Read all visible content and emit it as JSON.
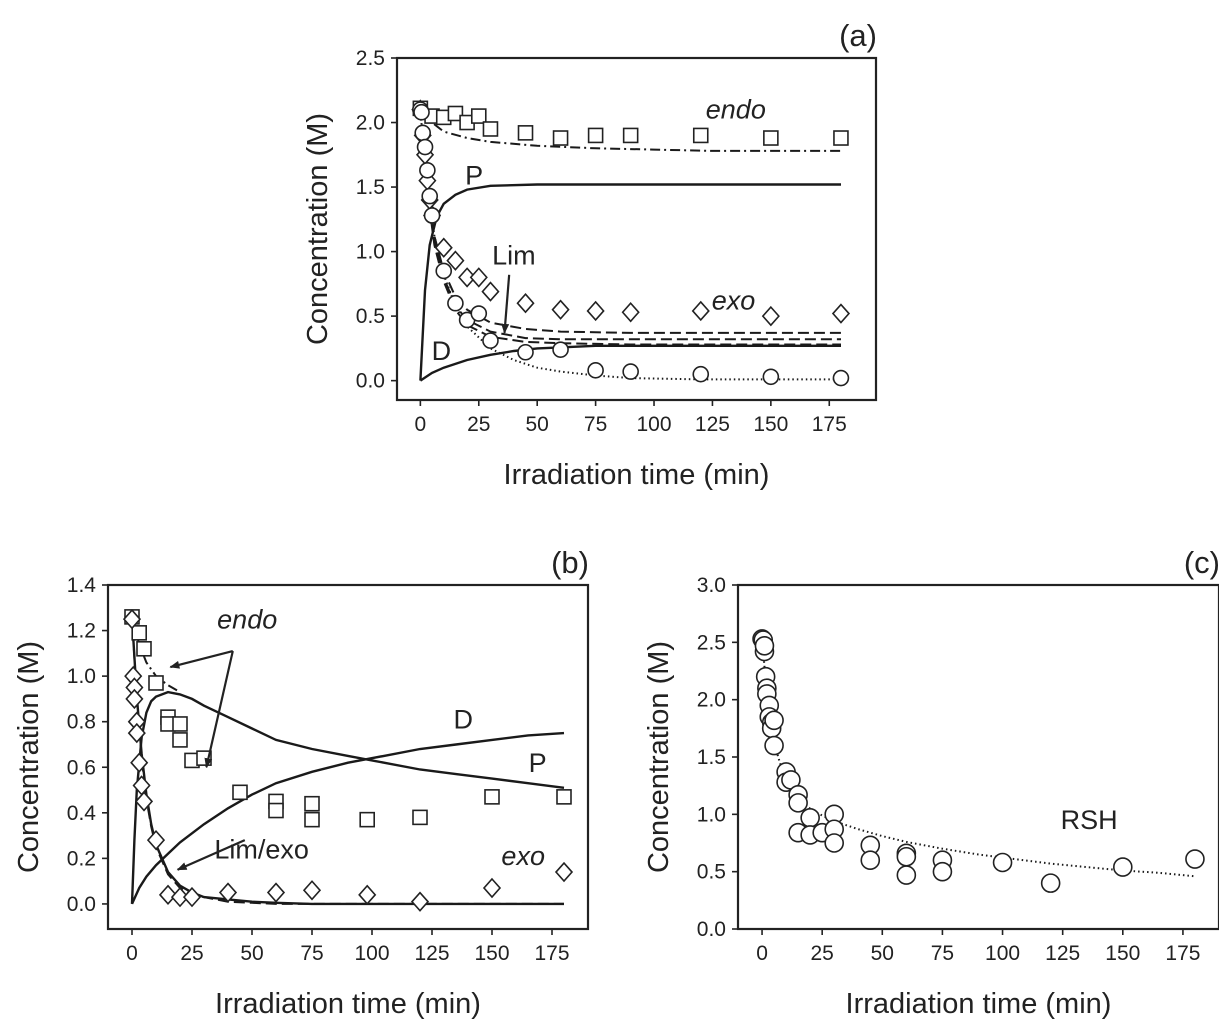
{
  "chart_data": [
    {
      "panel": "(a)",
      "type": "scatter",
      "xlabel": "Irradiation time (min)",
      "ylabel": "Concentration (M)",
      "xlim": [
        -10,
        195
      ],
      "ylim": [
        -0.15,
        2.5
      ],
      "xticks": [
        0,
        25,
        50,
        75,
        100,
        125,
        150,
        175
      ],
      "yticks": [
        0.0,
        0.5,
        1.0,
        1.5,
        2.0,
        2.5
      ],
      "ytick_labels": [
        "0.0",
        "0.5",
        "1.0",
        "1.5",
        "2.0",
        "2.5"
      ],
      "series": [
        {
          "marker": "square",
          "x": [
            0,
            5,
            10,
            15,
            20,
            25,
            30,
            45,
            60,
            75,
            90,
            120,
            150,
            180
          ],
          "y": [
            2.11,
            2.05,
            2.04,
            2.07,
            2.0,
            2.05,
            1.95,
            1.92,
            1.88,
            1.9,
            1.9,
            1.9,
            1.88,
            1.88
          ]
        },
        {
          "marker": "diamond",
          "x": [
            0,
            1,
            2,
            3,
            4,
            5,
            10,
            15,
            20,
            25,
            30,
            45,
            60,
            75,
            90,
            120,
            150,
            180
          ],
          "y": [
            2.1,
            1.9,
            1.75,
            1.55,
            1.4,
            1.28,
            1.03,
            0.93,
            0.8,
            0.8,
            0.69,
            0.6,
            0.55,
            0.54,
            0.53,
            0.54,
            0.5,
            0.52
          ]
        },
        {
          "marker": "circle",
          "x": [
            0,
            0.5,
            1,
            2,
            3,
            4,
            5,
            10,
            15,
            20,
            25,
            30,
            45,
            60,
            75,
            90,
            120,
            150,
            180
          ],
          "y": [
            2.1,
            2.08,
            1.92,
            1.81,
            1.63,
            1.43,
            1.28,
            0.85,
            0.6,
            0.47,
            0.52,
            0.31,
            0.22,
            0.24,
            0.08,
            0.07,
            0.05,
            0.03,
            0.02
          ]
        }
      ],
      "curves": [
        {
          "style": "dashdot",
          "x": [
            0,
            5,
            10,
            20,
            30,
            50,
            75,
            100,
            125,
            150,
            180
          ],
          "y": [
            2.1,
            2.0,
            1.93,
            1.88,
            1.85,
            1.82,
            1.8,
            1.79,
            1.78,
            1.78,
            1.78
          ]
        },
        {
          "style": "solid",
          "x": [
            0,
            2,
            4,
            7,
            10,
            15,
            20,
            30,
            50,
            75,
            100,
            180
          ],
          "y": [
            0,
            0.7,
            1.05,
            1.27,
            1.37,
            1.44,
            1.48,
            1.51,
            1.52,
            1.52,
            1.52,
            1.52
          ]
        },
        {
          "style": "solid",
          "x": [
            0,
            5,
            10,
            20,
            30,
            40,
            50,
            75,
            100,
            180
          ],
          "y": [
            0,
            0.06,
            0.1,
            0.16,
            0.2,
            0.23,
            0.25,
            0.27,
            0.27,
            0.27
          ]
        },
        {
          "style": "dashed",
          "x": [
            0,
            3,
            6,
            10,
            15,
            20,
            30,
            45,
            60,
            90,
            120,
            180
          ],
          "y": [
            2.1,
            1.5,
            1.12,
            0.85,
            0.65,
            0.55,
            0.45,
            0.4,
            0.38,
            0.37,
            0.37,
            0.37
          ]
        },
        {
          "style": "dashed",
          "x": [
            0,
            3,
            6,
            10,
            15,
            20,
            30,
            45,
            60,
            90,
            120,
            180
          ],
          "y": [
            2.1,
            1.48,
            1.08,
            0.8,
            0.58,
            0.47,
            0.38,
            0.33,
            0.32,
            0.32,
            0.32,
            0.32
          ]
        },
        {
          "style": "dashed",
          "x": [
            0,
            3,
            6,
            10,
            15,
            20,
            30,
            45,
            60,
            90,
            120,
            180
          ],
          "y": [
            2.1,
            1.46,
            1.05,
            0.77,
            0.55,
            0.43,
            0.34,
            0.3,
            0.29,
            0.28,
            0.28,
            0.28
          ]
        },
        {
          "style": "dotted",
          "x": [
            0,
            2,
            4,
            6,
            10,
            15,
            20,
            30,
            40,
            50,
            60,
            75,
            90,
            120,
            150,
            180
          ],
          "y": [
            2.1,
            1.65,
            1.35,
            1.12,
            0.82,
            0.58,
            0.42,
            0.25,
            0.16,
            0.1,
            0.07,
            0.04,
            0.02,
            0.01,
            0.01,
            0.01
          ]
        }
      ],
      "annotations": [
        {
          "text": "endo",
          "italic": true,
          "x": 135,
          "y": 2.03
        },
        {
          "text": "P",
          "italic": false,
          "x": 23,
          "y": 1.52
        },
        {
          "text": "Lim",
          "italic": false,
          "x": 40,
          "y": 0.9
        },
        {
          "text": "exo",
          "italic": true,
          "x": 134,
          "y": 0.55
        },
        {
          "text": "D",
          "italic": false,
          "x": 9,
          "y": 0.16
        }
      ],
      "arrows": [
        {
          "from": [
            38,
            0.82
          ],
          "to": [
            36,
            0.37
          ]
        }
      ]
    },
    {
      "panel": "(b)",
      "type": "scatter",
      "xlabel": "Irradiation time (min)",
      "ylabel": "Concentration (M)",
      "xlim": [
        -10,
        190
      ],
      "ylim": [
        -0.11,
        1.4
      ],
      "xticks": [
        0,
        25,
        50,
        75,
        100,
        125,
        150,
        175
      ],
      "yticks": [
        0.0,
        0.2,
        0.4,
        0.6,
        0.8,
        1.0,
        1.2,
        1.4
      ],
      "ytick_labels": [
        "0.0",
        "0.2",
        "0.4",
        "0.6",
        "0.8",
        "1.0",
        "1.2",
        "1.4"
      ],
      "series": [
        {
          "marker": "square",
          "x": [
            0,
            3,
            5,
            10,
            15,
            15,
            20,
            20,
            25,
            30,
            45,
            60,
            60,
            75,
            75,
            98,
            120,
            150,
            180
          ],
          "y": [
            1.26,
            1.19,
            1.12,
            0.97,
            0.82,
            0.79,
            0.79,
            0.72,
            0.63,
            0.64,
            0.49,
            0.45,
            0.41,
            0.44,
            0.37,
            0.37,
            0.38,
            0.47,
            0.47
          ]
        },
        {
          "marker": "diamond",
          "x": [
            0,
            0.5,
            1,
            1,
            2,
            2,
            3,
            4,
            5,
            10,
            15,
            20,
            25,
            40,
            60,
            75,
            98,
            120,
            150,
            180
          ],
          "y": [
            1.25,
            1.0,
            0.95,
            0.9,
            0.8,
            0.75,
            0.62,
            0.52,
            0.45,
            0.28,
            0.04,
            0.03,
            0.03,
            0.05,
            0.05,
            0.06,
            0.04,
            0.01,
            0.07,
            0.14
          ]
        }
      ],
      "curves": [
        {
          "style": "dashdot",
          "x": [
            0,
            3,
            6,
            10,
            15,
            20
          ],
          "y": [
            1.26,
            1.14,
            1.06,
            1.0,
            0.96,
            0.93
          ]
        },
        {
          "style": "solid",
          "x": [
            0,
            1,
            2,
            4,
            6,
            8,
            10,
            15,
            20,
            25,
            30,
            40,
            50,
            60,
            75,
            90,
            105,
            120,
            135,
            150,
            165,
            180
          ],
          "y": [
            0,
            0.28,
            0.5,
            0.73,
            0.84,
            0.89,
            0.91,
            0.93,
            0.92,
            0.9,
            0.87,
            0.82,
            0.77,
            0.72,
            0.68,
            0.65,
            0.62,
            0.59,
            0.57,
            0.55,
            0.53,
            0.51
          ]
        },
        {
          "style": "solid",
          "x": [
            0,
            3,
            6,
            10,
            15,
            20,
            30,
            40,
            50,
            60,
            75,
            90,
            105,
            120,
            135,
            150,
            165,
            180
          ],
          "y": [
            0,
            0.07,
            0.12,
            0.17,
            0.22,
            0.27,
            0.35,
            0.42,
            0.48,
            0.53,
            0.58,
            0.62,
            0.65,
            0.68,
            0.7,
            0.72,
            0.74,
            0.75
          ]
        },
        {
          "style": "dashed",
          "x": [
            0,
            2,
            4,
            6,
            8,
            10,
            15,
            20,
            25,
            30,
            40,
            50,
            60,
            75,
            100,
            140,
            180
          ],
          "y": [
            1.26,
            0.9,
            0.64,
            0.46,
            0.34,
            0.25,
            0.13,
            0.07,
            0.04,
            0.03,
            0.01,
            0.005,
            0.0,
            0.0,
            0.0,
            0.0,
            0.0
          ]
        },
        {
          "style": "solid",
          "x": [
            0,
            2,
            4,
            6,
            8,
            10,
            15,
            20,
            25,
            30,
            40,
            50,
            60,
            75,
            100,
            140,
            180
          ],
          "y": [
            1.26,
            0.91,
            0.66,
            0.48,
            0.35,
            0.26,
            0.14,
            0.08,
            0.05,
            0.03,
            0.02,
            0.01,
            0.005,
            0.0,
            0.0,
            0.0,
            0.0
          ]
        }
      ],
      "annotations": [
        {
          "text": "endo",
          "italic": true,
          "x": 48,
          "y": 1.21
        },
        {
          "text": "D",
          "italic": false,
          "x": 138,
          "y": 0.77
        },
        {
          "text": "P",
          "italic": false,
          "x": 169,
          "y": 0.58
        },
        {
          "text": "Lim/exo",
          "italic": false,
          "x": 54,
          "y": 0.2
        },
        {
          "text": "exo",
          "italic": true,
          "x": 163,
          "y": 0.17
        }
      ],
      "arrows": [
        {
          "from": [
            42,
            1.11
          ],
          "to": [
            16,
            1.04
          ]
        },
        {
          "from": [
            42,
            1.11
          ],
          "to": [
            31,
            0.6
          ]
        },
        {
          "from": [
            47,
            0.28
          ],
          "to": [
            19,
            0.15
          ]
        }
      ]
    },
    {
      "panel": "(c)",
      "type": "scatter",
      "xlabel": "Irradiation time (min)",
      "ylabel": "Concentration (M)",
      "xlim": [
        -10,
        190
      ],
      "ylim": [
        0,
        3
      ],
      "xticks": [
        0,
        25,
        50,
        75,
        100,
        125,
        150,
        175
      ],
      "yticks": [
        0.0,
        0.5,
        1.0,
        1.5,
        2.0,
        2.5,
        3.0
      ],
      "ytick_labels": [
        "0.0",
        "0.5",
        "1.0",
        "1.5",
        "2.0",
        "2.5",
        "3.0"
      ],
      "series": [
        {
          "marker": "circle",
          "x": [
            0,
            0.5,
            1,
            1,
            1.5,
            2,
            2,
            3,
            3,
            4,
            4,
            5,
            5,
            10,
            10,
            12,
            15,
            15,
            15,
            20,
            20,
            25,
            30,
            30,
            30,
            45,
            45,
            60,
            60,
            60,
            75,
            75,
            100,
            120,
            150,
            180
          ],
          "y": [
            2.53,
            2.52,
            2.42,
            2.47,
            2.2,
            2.1,
            2.05,
            1.95,
            1.85,
            1.8,
            1.75,
            1.6,
            1.82,
            1.37,
            1.28,
            1.3,
            1.17,
            1.1,
            0.84,
            0.97,
            0.82,
            0.84,
            1.0,
            0.87,
            0.75,
            0.73,
            0.6,
            0.66,
            0.63,
            0.47,
            0.6,
            0.5,
            0.58,
            0.4,
            0.54,
            0.61
          ]
        }
      ],
      "curves": [
        {
          "style": "dotted",
          "x": [
            0,
            2,
            4,
            6,
            8,
            10,
            15,
            20,
            25,
            30,
            40,
            50,
            60,
            75,
            90,
            105,
            120,
            135,
            150,
            165,
            180
          ],
          "y": [
            2.53,
            2.05,
            1.75,
            1.55,
            1.41,
            1.3,
            1.14,
            1.05,
            0.99,
            0.94,
            0.87,
            0.81,
            0.76,
            0.7,
            0.65,
            0.61,
            0.57,
            0.54,
            0.51,
            0.49,
            0.46
          ]
        }
      ],
      "annotations": [
        {
          "text": "RSH",
          "italic": false,
          "x": 136,
          "y": 0.87
        }
      ],
      "arrows": []
    }
  ]
}
